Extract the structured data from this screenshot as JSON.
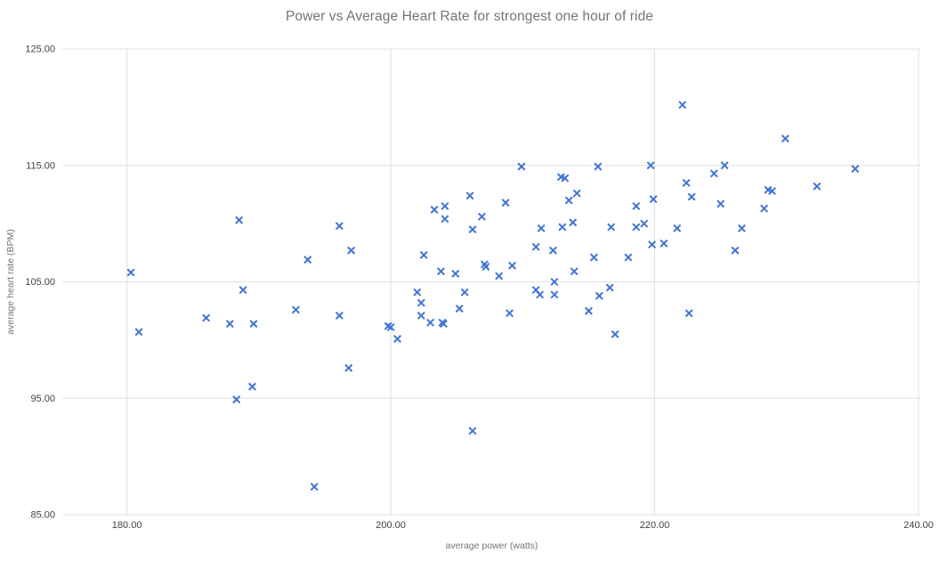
{
  "chart_data": {
    "type": "scatter",
    "title": "Power vs Average Heart Rate for strongest one hour of ride",
    "xlabel": "average power (watts)",
    "ylabel": "average heart rate (BPM)",
    "xlim": [
      175.1,
      240.2
    ],
    "ylim": [
      85,
      125
    ],
    "grid": true,
    "legend_position": "none",
    "marker": "x",
    "marker_color": "#4175d2",
    "grid_color": "#e0e0e0",
    "tick_label_color": "#424242",
    "axis_title_color": "#757575",
    "title_color": "#757575",
    "x_ticks": [
      {
        "value": 180,
        "label": "180.00"
      },
      {
        "value": 200,
        "label": "200.00"
      },
      {
        "value": 220,
        "label": "220.00"
      },
      {
        "value": 240,
        "label": "240.00"
      }
    ],
    "y_ticks": [
      {
        "value": 125,
        "label": "125.00"
      },
      {
        "value": 115,
        "label": "115.00"
      },
      {
        "value": 105,
        "label": "105.00"
      },
      {
        "value": 95,
        "label": "95.00"
      },
      {
        "value": 85,
        "label": "85.00"
      }
    ],
    "points": [
      [
        188.5,
        110.3
      ],
      [
        180.3,
        105.8
      ],
      [
        196.1,
        109.8
      ],
      [
        197.0,
        107.7
      ],
      [
        193.7,
        106.9
      ],
      [
        206.0,
        112.4
      ],
      [
        203.3,
        111.2
      ],
      [
        204.1,
        111.5
      ],
      [
        204.1,
        110.4
      ],
      [
        206.9,
        110.6
      ],
      [
        206.2,
        109.5
      ],
      [
        208.7,
        111.8
      ],
      [
        202.5,
        107.3
      ],
      [
        203.8,
        105.9
      ],
      [
        204.9,
        105.7
      ],
      [
        207.1,
        106.5
      ],
      [
        207.2,
        106.3
      ],
      [
        208.2,
        105.5
      ],
      [
        209.2,
        106.4
      ],
      [
        222.1,
        120.2
      ],
      [
        209.9,
        114.9
      ],
      [
        215.7,
        114.9
      ],
      [
        219.7,
        115.0
      ],
      [
        225.3,
        115.0
      ],
      [
        224.5,
        114.3
      ],
      [
        212.9,
        114.0
      ],
      [
        213.2,
        113.9
      ],
      [
        214.1,
        112.6
      ],
      [
        213.5,
        112.0
      ],
      [
        222.4,
        113.5
      ],
      [
        222.8,
        112.3
      ],
      [
        219.9,
        112.1
      ],
      [
        225.0,
        111.7
      ],
      [
        218.6,
        111.5
      ],
      [
        213.8,
        110.1
      ],
      [
        213.0,
        109.7
      ],
      [
        211.4,
        109.6
      ],
      [
        216.7,
        109.7
      ],
      [
        218.6,
        109.7
      ],
      [
        219.2,
        110.0
      ],
      [
        221.7,
        109.6
      ],
      [
        211.0,
        108.0
      ],
      [
        212.3,
        107.7
      ],
      [
        219.8,
        108.2
      ],
      [
        220.7,
        108.3
      ],
      [
        215.4,
        107.1
      ],
      [
        218.0,
        107.1
      ],
      [
        213.9,
        105.9
      ],
      [
        229.9,
        117.3
      ],
      [
        235.2,
        114.7
      ],
      [
        232.3,
        113.2
      ],
      [
        228.6,
        112.9
      ],
      [
        228.9,
        112.8
      ],
      [
        228.3,
        111.3
      ],
      [
        226.6,
        109.6
      ],
      [
        226.1,
        107.7
      ],
      [
        188.8,
        104.3
      ],
      [
        186.0,
        101.9
      ],
      [
        187.8,
        101.4
      ],
      [
        189.6,
        101.4
      ],
      [
        180.9,
        100.7
      ],
      [
        189.5,
        96.0
      ],
      [
        188.3,
        94.9
      ],
      [
        192.8,
        102.6
      ],
      [
        196.1,
        102.1
      ],
      [
        199.8,
        101.2
      ],
      [
        200.0,
        101.1
      ],
      [
        200.5,
        100.1
      ],
      [
        196.8,
        97.6
      ],
      [
        202.0,
        104.1
      ],
      [
        202.3,
        103.2
      ],
      [
        202.3,
        102.1
      ],
      [
        203.0,
        101.5
      ],
      [
        203.9,
        101.5
      ],
      [
        204.0,
        101.4
      ],
      [
        205.2,
        102.7
      ],
      [
        205.6,
        104.1
      ],
      [
        206.2,
        92.2
      ],
      [
        194.2,
        87.4
      ],
      [
        211.0,
        104.3
      ],
      [
        211.3,
        103.9
      ],
      [
        212.4,
        105.0
      ],
      [
        212.4,
        103.9
      ],
      [
        216.6,
        104.5
      ],
      [
        215.8,
        103.8
      ],
      [
        215.0,
        102.5
      ],
      [
        209.0,
        102.3
      ],
      [
        217.0,
        100.5
      ],
      [
        222.6,
        102.3
      ]
    ]
  }
}
